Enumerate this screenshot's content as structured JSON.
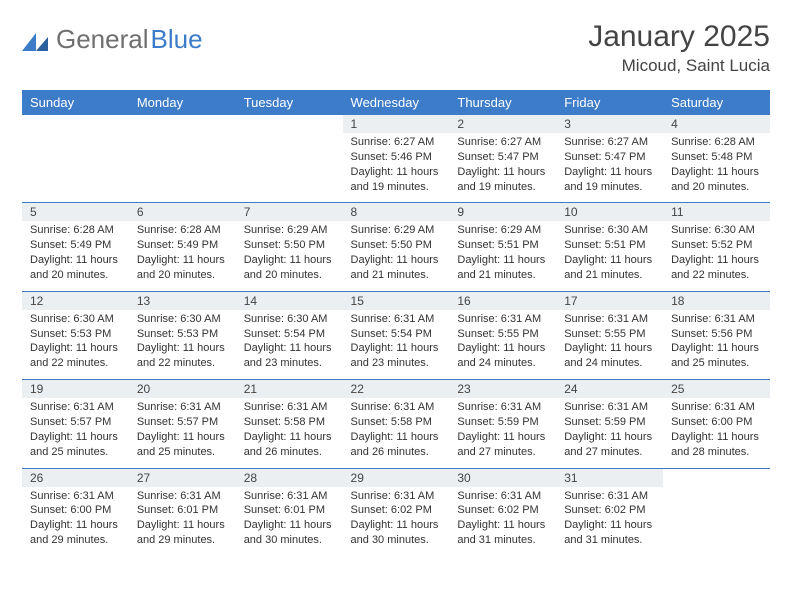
{
  "logo": {
    "text1": "General",
    "text2": "Blue"
  },
  "title": "January 2025",
  "location": "Micoud, Saint Lucia",
  "colors": {
    "header_bg": "#3d7cc9",
    "header_text": "#ffffff",
    "daynum_bg": "#eceff2",
    "border": "#3d7cc9",
    "text": "#333333",
    "title_text": "#444444",
    "logo_gray": "#6f6f6f",
    "logo_blue": "#3d7cc9"
  },
  "typography": {
    "title_fontsize": 30,
    "location_fontsize": 17,
    "header_fontsize": 13,
    "daynum_fontsize": 12,
    "body_fontsize": 11
  },
  "day_headers": [
    "Sunday",
    "Monday",
    "Tuesday",
    "Wednesday",
    "Thursday",
    "Friday",
    "Saturday"
  ],
  "weeks": [
    [
      null,
      null,
      null,
      {
        "n": "1",
        "sr": "6:27 AM",
        "ss": "5:46 PM",
        "dl": "11 hours and 19 minutes."
      },
      {
        "n": "2",
        "sr": "6:27 AM",
        "ss": "5:47 PM",
        "dl": "11 hours and 19 minutes."
      },
      {
        "n": "3",
        "sr": "6:27 AM",
        "ss": "5:47 PM",
        "dl": "11 hours and 19 minutes."
      },
      {
        "n": "4",
        "sr": "6:28 AM",
        "ss": "5:48 PM",
        "dl": "11 hours and 20 minutes."
      }
    ],
    [
      {
        "n": "5",
        "sr": "6:28 AM",
        "ss": "5:49 PM",
        "dl": "11 hours and 20 minutes."
      },
      {
        "n": "6",
        "sr": "6:28 AM",
        "ss": "5:49 PM",
        "dl": "11 hours and 20 minutes."
      },
      {
        "n": "7",
        "sr": "6:29 AM",
        "ss": "5:50 PM",
        "dl": "11 hours and 20 minutes."
      },
      {
        "n": "8",
        "sr": "6:29 AM",
        "ss": "5:50 PM",
        "dl": "11 hours and 21 minutes."
      },
      {
        "n": "9",
        "sr": "6:29 AM",
        "ss": "5:51 PM",
        "dl": "11 hours and 21 minutes."
      },
      {
        "n": "10",
        "sr": "6:30 AM",
        "ss": "5:51 PM",
        "dl": "11 hours and 21 minutes."
      },
      {
        "n": "11",
        "sr": "6:30 AM",
        "ss": "5:52 PM",
        "dl": "11 hours and 22 minutes."
      }
    ],
    [
      {
        "n": "12",
        "sr": "6:30 AM",
        "ss": "5:53 PM",
        "dl": "11 hours and 22 minutes."
      },
      {
        "n": "13",
        "sr": "6:30 AM",
        "ss": "5:53 PM",
        "dl": "11 hours and 22 minutes."
      },
      {
        "n": "14",
        "sr": "6:30 AM",
        "ss": "5:54 PM",
        "dl": "11 hours and 23 minutes."
      },
      {
        "n": "15",
        "sr": "6:31 AM",
        "ss": "5:54 PM",
        "dl": "11 hours and 23 minutes."
      },
      {
        "n": "16",
        "sr": "6:31 AM",
        "ss": "5:55 PM",
        "dl": "11 hours and 24 minutes."
      },
      {
        "n": "17",
        "sr": "6:31 AM",
        "ss": "5:55 PM",
        "dl": "11 hours and 24 minutes."
      },
      {
        "n": "18",
        "sr": "6:31 AM",
        "ss": "5:56 PM",
        "dl": "11 hours and 25 minutes."
      }
    ],
    [
      {
        "n": "19",
        "sr": "6:31 AM",
        "ss": "5:57 PM",
        "dl": "11 hours and 25 minutes."
      },
      {
        "n": "20",
        "sr": "6:31 AM",
        "ss": "5:57 PM",
        "dl": "11 hours and 25 minutes."
      },
      {
        "n": "21",
        "sr": "6:31 AM",
        "ss": "5:58 PM",
        "dl": "11 hours and 26 minutes."
      },
      {
        "n": "22",
        "sr": "6:31 AM",
        "ss": "5:58 PM",
        "dl": "11 hours and 26 minutes."
      },
      {
        "n": "23",
        "sr": "6:31 AM",
        "ss": "5:59 PM",
        "dl": "11 hours and 27 minutes."
      },
      {
        "n": "24",
        "sr": "6:31 AM",
        "ss": "5:59 PM",
        "dl": "11 hours and 27 minutes."
      },
      {
        "n": "25",
        "sr": "6:31 AM",
        "ss": "6:00 PM",
        "dl": "11 hours and 28 minutes."
      }
    ],
    [
      {
        "n": "26",
        "sr": "6:31 AM",
        "ss": "6:00 PM",
        "dl": "11 hours and 29 minutes."
      },
      {
        "n": "27",
        "sr": "6:31 AM",
        "ss": "6:01 PM",
        "dl": "11 hours and 29 minutes."
      },
      {
        "n": "28",
        "sr": "6:31 AM",
        "ss": "6:01 PM",
        "dl": "11 hours and 30 minutes."
      },
      {
        "n": "29",
        "sr": "6:31 AM",
        "ss": "6:02 PM",
        "dl": "11 hours and 30 minutes."
      },
      {
        "n": "30",
        "sr": "6:31 AM",
        "ss": "6:02 PM",
        "dl": "11 hours and 31 minutes."
      },
      {
        "n": "31",
        "sr": "6:31 AM",
        "ss": "6:02 PM",
        "dl": "11 hours and 31 minutes."
      },
      null
    ]
  ],
  "labels": {
    "sunrise": "Sunrise:",
    "sunset": "Sunset:",
    "daylight": "Daylight:"
  }
}
